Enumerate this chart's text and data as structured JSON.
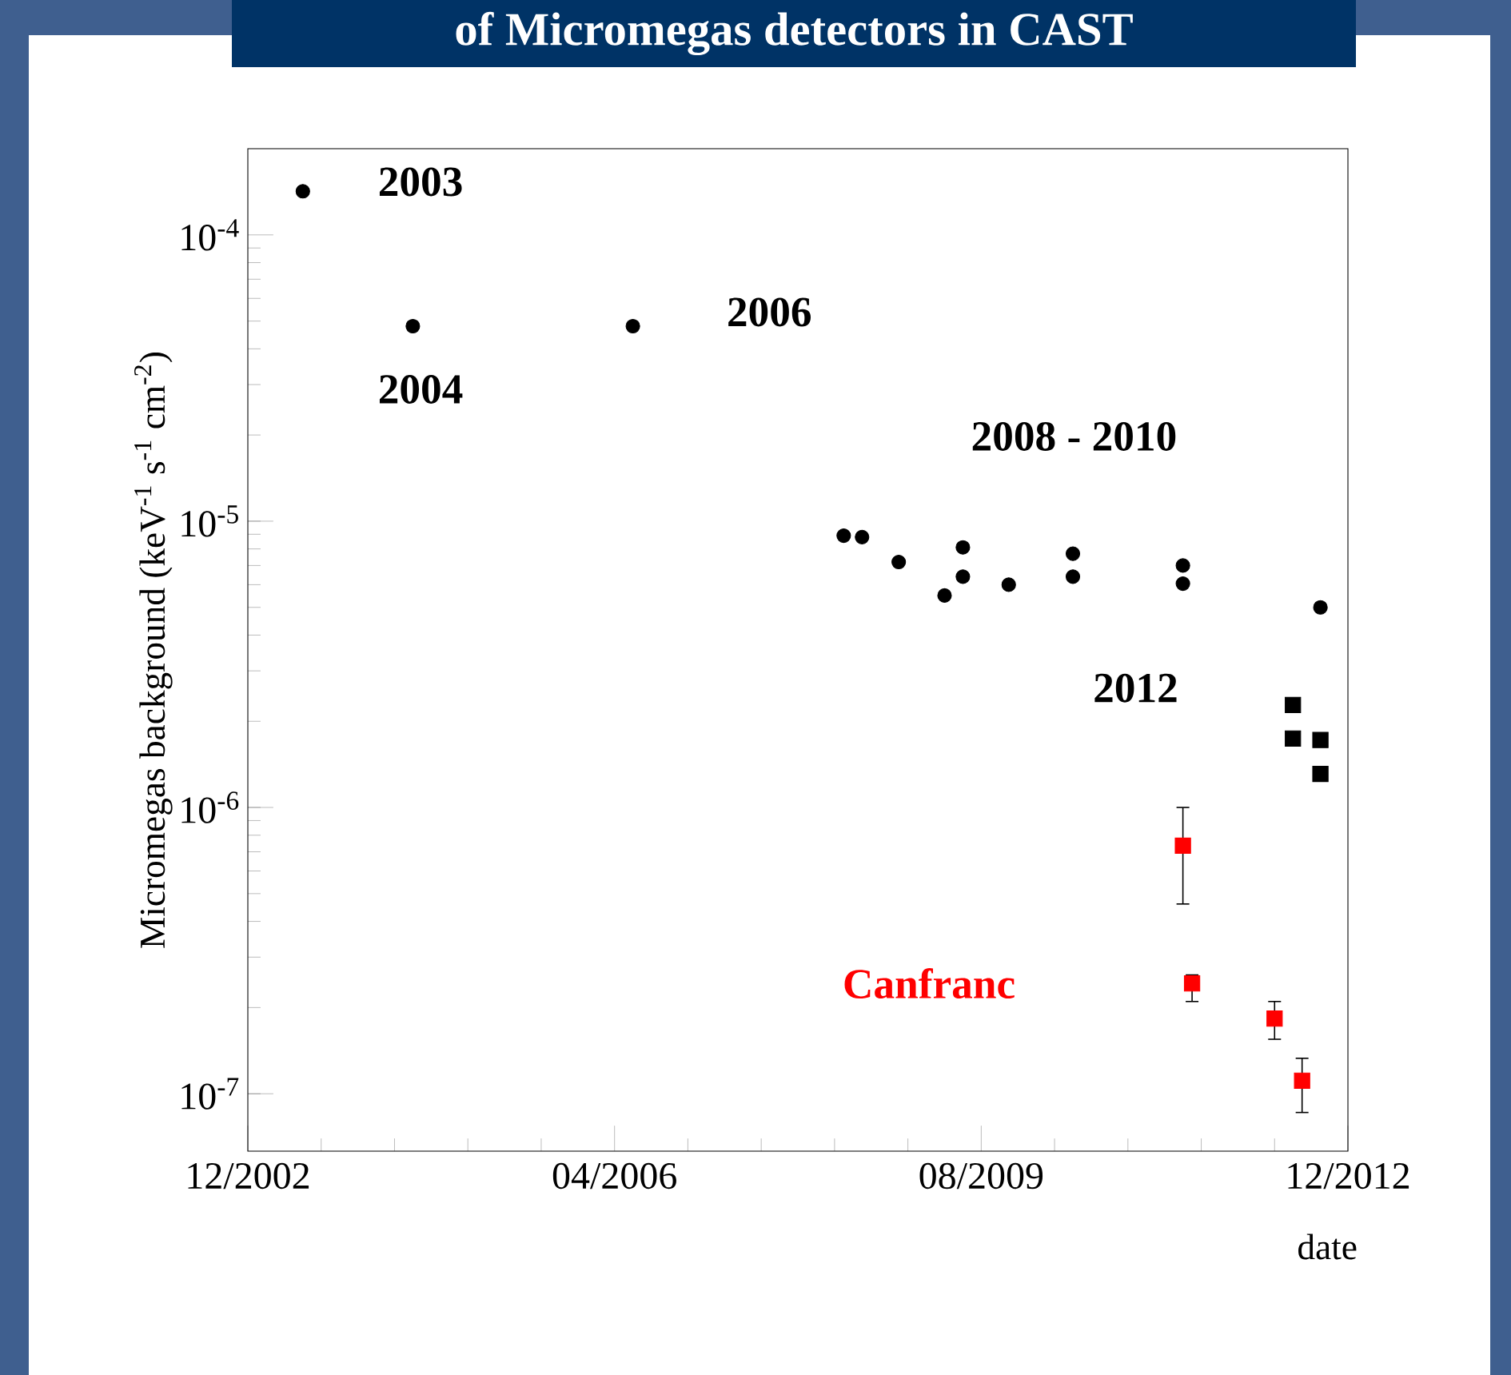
{
  "chart_data": {
    "type": "scatter",
    "title": "of Micromegas detectors in CAST",
    "xlabel": "date",
    "ylabel": "Micromegas background (keV$^{-1}$ s$^{-1}$ cm$^{-2}$)",
    "log": "y",
    "xlim": [
      "2002-12",
      "2012-12"
    ],
    "ylim": [
      6.3e-08,
      0.0002
    ],
    "xticks": [
      {
        "value": "2002-12",
        "label": "12/2002"
      },
      {
        "value": "2003-08",
        "label": null
      },
      {
        "value": "2004-04",
        "label": null
      },
      {
        "value": "2004-12",
        "label": null
      },
      {
        "value": "2005-08",
        "label": null
      },
      {
        "value": "2006-04",
        "label": "04/2006"
      },
      {
        "value": "2006-12",
        "label": null
      },
      {
        "value": "2007-08",
        "label": null
      },
      {
        "value": "2008-04",
        "label": null
      },
      {
        "value": "2008-12",
        "label": null
      },
      {
        "value": "2009-08",
        "label": "08/2009"
      },
      {
        "value": "2010-04",
        "label": null
      },
      {
        "value": "2010-12",
        "label": null
      },
      {
        "value": "2011-08",
        "label": null
      },
      {
        "value": "2012-04",
        "label": null
      },
      {
        "value": "2012-12",
        "label": "12/2012"
      }
    ],
    "yticks": [
      {
        "value": 1e-07,
        "label": "10$^{-7}$"
      },
      {
        "value": 1e-06,
        "label": "10$^{-6}$"
      },
      {
        "value": 1e-05,
        "label": "10$^{-5}$"
      },
      {
        "value": 0.0001,
        "label": "10$^{-4}$"
      }
    ],
    "annotations": [
      "2003",
      "2004",
      "2006",
      "2008 - 2010",
      "2012"
    ],
    "series": [
      {
        "color": "#000000",
        "marker": "circle",
        "x": [
          "2003-06",
          "2004-06",
          "2006-06",
          "2008-05",
          "2008-07",
          "2008-11",
          "2009-04",
          "2009-06",
          "2009-06",
          "2009-11",
          "2010-06",
          "2010-06",
          "2011-06",
          "2011-06",
          "2012-09"
        ],
        "values": [
          0.000142,
          4.8e-05,
          4.8e-05,
          8.9e-06,
          8.8e-06,
          7.2e-06,
          5.5e-06,
          8.1e-06,
          6.4e-06,
          6e-06,
          7.7e-06,
          6.4e-06,
          7e-06,
          6.05e-06,
          5e-06
        ]
      },
      {
        "color": "#000000",
        "marker": "square",
        "x": [
          "2012-06",
          "2012-06",
          "2012-09",
          "2012-09"
        ],
        "values": [
          2.28e-06,
          1.74e-06,
          1.72e-06,
          1.31e-06
        ]
      },
      {
        "name": "Canfranc",
        "color": "#ff0000",
        "marker": "square",
        "x": [
          "2011-06",
          "2011-07",
          "2012-04",
          "2012-07"
        ],
        "values": [
          7.35e-07,
          2.43e-07,
          1.83e-07,
          1.11e-07
        ],
        "errors": [
          [
            4.6e-07,
            1e-06
          ],
          [
            2.1e-07,
            2.6e-07
          ],
          [
            1.55e-07,
            2.1e-07
          ],
          [
            8.6e-08,
            1.33e-07
          ]
        ]
      }
    ]
  }
}
